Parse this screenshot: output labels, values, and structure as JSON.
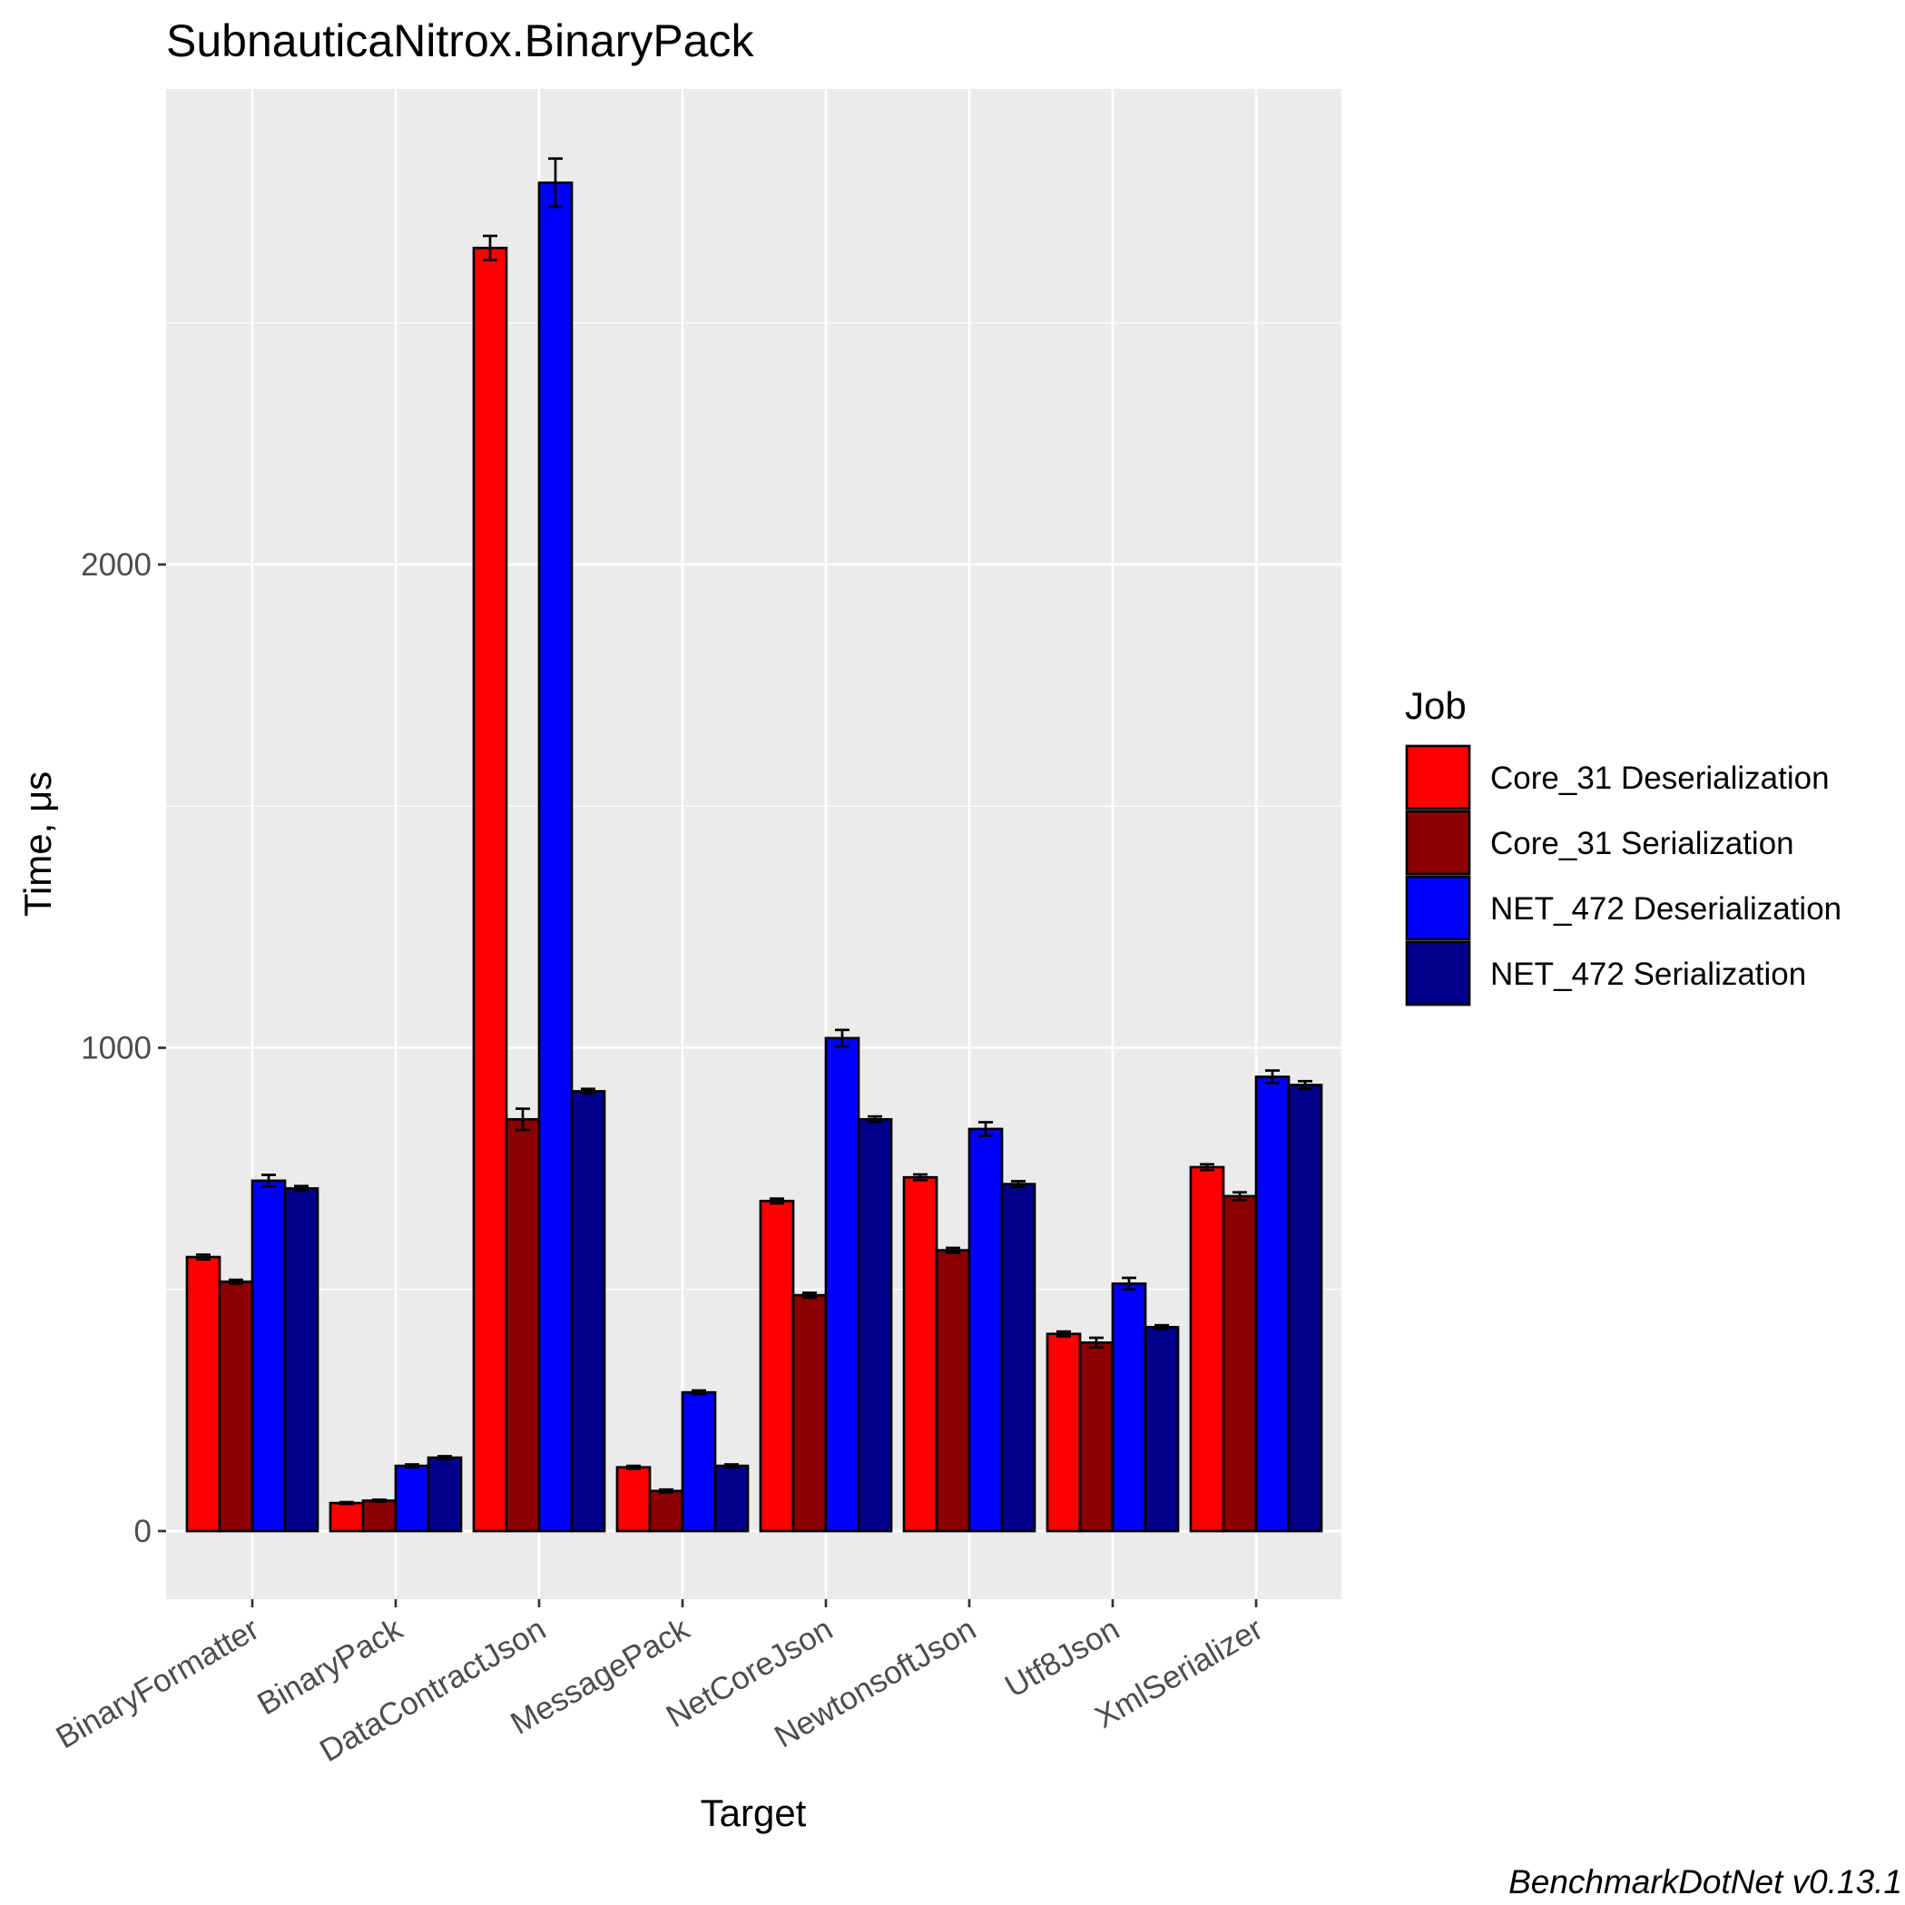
{
  "chart_data": {
    "type": "bar",
    "title": "SubnauticaNitrox.BinaryPack",
    "xlabel": "Target",
    "ylabel": "Time, μs",
    "caption": "BenchmarkDotNet v0.13.1",
    "categories": [
      "BinaryFormatter",
      "BinaryPack",
      "DataContractJson",
      "MessagePack",
      "NetCoreJson",
      "NewtonsoftJson",
      "Utf8Json",
      "XmlSerializer"
    ],
    "yticks": [
      0,
      1000,
      2000
    ],
    "ylim": [
      -140,
      2990
    ],
    "grid": true,
    "legend": {
      "title": "Job",
      "position": "right"
    },
    "series": [
      {
        "name": "Core_31 Deserialization",
        "color": "#ff0000",
        "values": [
          567,
          58,
          2655,
          132,
          683,
          732,
          408,
          753
        ],
        "err": [
          5,
          2,
          25,
          3,
          5,
          6,
          5,
          6
        ]
      },
      {
        "name": "Core_31 Serialization",
        "color": "#8b0000",
        "values": [
          516,
          63,
          852,
          83,
          488,
          581,
          390,
          693
        ],
        "err": [
          4,
          2,
          22,
          3,
          5,
          5,
          10,
          8
        ]
      },
      {
        "name": "NET_472 Deserialization",
        "color": "#0000ff",
        "values": [
          725,
          135,
          2790,
          287,
          1020,
          832,
          512,
          940
        ],
        "err": [
          12,
          3,
          50,
          4,
          17,
          14,
          12,
          13
        ]
      },
      {
        "name": "NET_472 Serialization",
        "color": "#00008b",
        "values": [
          709,
          152,
          910,
          135,
          852,
          718,
          422,
          923
        ],
        "err": [
          5,
          3,
          5,
          3,
          6,
          6,
          4,
          8
        ]
      }
    ]
  }
}
